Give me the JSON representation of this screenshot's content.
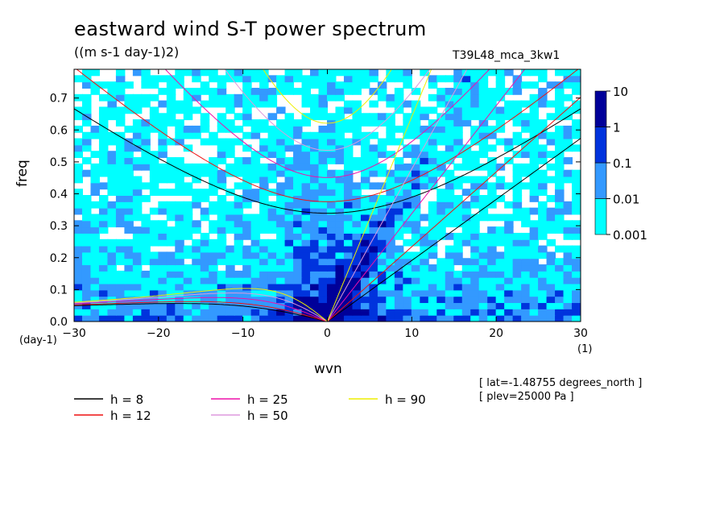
{
  "chart_data": {
    "type": "heatmap",
    "title": "eastward wind S-T power spectrum",
    "units": "((m s-1 day-1)2)",
    "run_label": "T39L48_mca_3kw1",
    "xlabel": "wvn",
    "ylabel": "freq",
    "xunit": "(1)",
    "yunit": "(day-1)",
    "xlim": [
      -30,
      30
    ],
    "ylim": [
      0,
      0.79
    ],
    "xticks": [
      -30,
      -20,
      -10,
      0,
      10,
      20,
      30
    ],
    "yticks": [
      0.0,
      0.1,
      0.2,
      0.3,
      0.4,
      0.5,
      0.6,
      0.7
    ],
    "xtick_labels": [
      "−30",
      "−20",
      "−10",
      "0",
      "10",
      "20",
      "30"
    ],
    "ytick_labels": [
      "0.0",
      "0.1",
      "0.2",
      "0.3",
      "0.4",
      "0.5",
      "0.6",
      "0.7"
    ],
    "colorbar": {
      "levels": [
        0.001,
        0.01,
        0.1,
        1,
        10
      ],
      "labels": [
        "0.001",
        "0.01",
        "0.1",
        "1",
        "10"
      ],
      "colors": [
        "#00ffff",
        "#3399ff",
        "#0033dd",
        "#000099",
        "#440099"
      ]
    },
    "dispersion_curves": [
      {
        "label": "h =  8",
        "h": 8,
        "color": "#000000"
      },
      {
        "label": "h = 12",
        "h": 12,
        "color": "#ee1111"
      },
      {
        "label": "h = 25",
        "h": 25,
        "color": "#ee11aa"
      },
      {
        "label": "h = 50",
        "h": 50,
        "color": "#dd99dd"
      },
      {
        "label": "h = 90",
        "h": 90,
        "color": "#eeee00"
      }
    ],
    "annotations": [
      "[ lat=-1.48755 degrees_north ]",
      "[ plev=25000 Pa ]"
    ],
    "grid": false,
    "legend_placement": "bottom"
  }
}
